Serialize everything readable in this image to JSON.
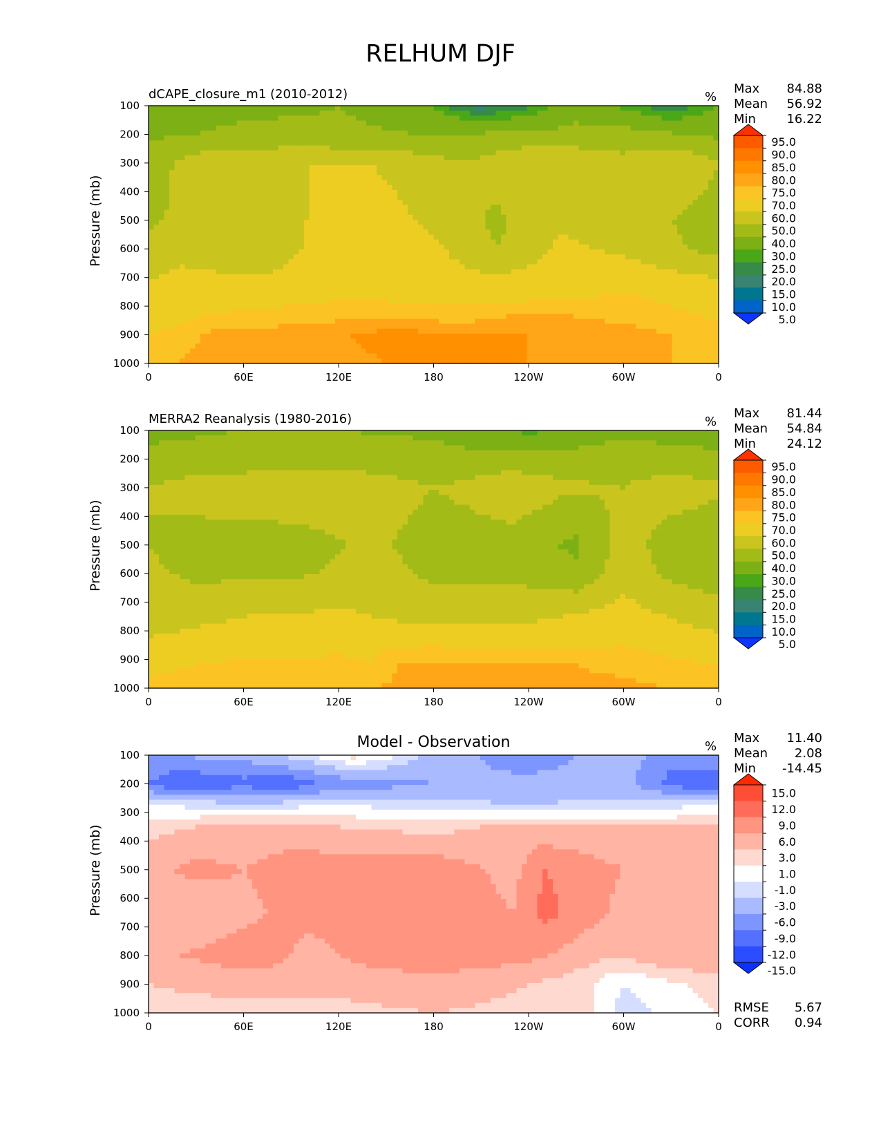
{
  "figure": {
    "title": "RELHUM DJF",
    "units": "%"
  },
  "chart_data": [
    {
      "type": "heatmap",
      "title": "dCAPE_closure_m1 (2010-2012)",
      "units": "%",
      "xlabel": "",
      "ylabel": "Pressure (mb)",
      "xticks": [
        "0",
        "60E",
        "120E",
        "180",
        "120W",
        "60W",
        "0"
      ],
      "yticks": [
        100,
        200,
        300,
        400,
        500,
        600,
        700,
        800,
        900,
        1000
      ],
      "ylim": [
        100,
        1000
      ],
      "stats": {
        "Max": "84.88",
        "Mean": "56.92",
        "Min": "16.22"
      },
      "colorbar_levels": [
        "95.0",
        "90.0",
        "85.0",
        "80.0",
        "75.0",
        "70.0",
        "60.0",
        "50.0",
        "40.0",
        "30.0",
        "25.0",
        "20.0",
        "15.0",
        "10.0",
        "5.0"
      ],
      "colorbar_colors": [
        "#fe3200",
        "#fe5a00",
        "#fe7800",
        "#ff9000",
        "#ffa517",
        "#fbc323",
        "#eecd23",
        "#cac41f",
        "#a3bb17",
        "#7cb014",
        "#4aa717",
        "#378b48",
        "#398372",
        "#00778f",
        "#0063c8",
        "#0c36ff"
      ],
      "fields": [
        {
          "p": 100,
          "lon": [
            0,
            10,
            60,
            120,
            150,
            180,
            190,
            210,
            240,
            270,
            300,
            330,
            360
          ],
          "rh": [
            30,
            34,
            38,
            40,
            38,
            30,
            24,
            17,
            24,
            36,
            28,
            20,
            30
          ]
        },
        {
          "p": 200,
          "lon": [
            0,
            60,
            120,
            180,
            240,
            300,
            360
          ],
          "rh": [
            38,
            42,
            41,
            40,
            42,
            44,
            38
          ]
        },
        {
          "p": 300,
          "lon": [
            0,
            30,
            90,
            140,
            200,
            240,
            270,
            300,
            330,
            360
          ],
          "rh": [
            45,
            55,
            60,
            60,
            50,
            60,
            58,
            53,
            60,
            50
          ]
        },
        {
          "p": 500,
          "lon": [
            0,
            20,
            45,
            75,
            125,
            180,
            220,
            260,
            300,
            340,
            360
          ],
          "rh": [
            48,
            52,
            55,
            52,
            68,
            58,
            48,
            58,
            56,
            48,
            46
          ]
        },
        {
          "p": 600,
          "lon": [
            0,
            20,
            45,
            75,
            125,
            180,
            220,
            260,
            300,
            340,
            360
          ],
          "rh": [
            55,
            58,
            55,
            52,
            70,
            62,
            50,
            62,
            58,
            50,
            47
          ]
        },
        {
          "p": 750,
          "lon": [
            0,
            60,
            120,
            180,
            240,
            300,
            360
          ],
          "rh": [
            62,
            65,
            68,
            66,
            66,
            70,
            66
          ]
        },
        {
          "p": 850,
          "lon": [
            0,
            40,
            100,
            150,
            200,
            240,
            300,
            360
          ],
          "rh": [
            66,
            72,
            74,
            76,
            74,
            78,
            74,
            70
          ]
        },
        {
          "p": 900,
          "lon": [
            0,
            40,
            100,
            150,
            200,
            240,
            300,
            360
          ],
          "rh": [
            70,
            76,
            78,
            82,
            81,
            80,
            78,
            72
          ]
        },
        {
          "p": 1000,
          "lon": [
            0,
            60,
            120,
            180,
            240,
            300,
            360
          ],
          "rh": [
            74,
            78,
            78,
            82,
            80,
            76,
            74
          ]
        }
      ]
    },
    {
      "type": "heatmap",
      "title": "MERRA2 Reanalysis (1980-2016)",
      "units": "%",
      "xlabel": "",
      "ylabel": "Pressure (mb)",
      "xticks": [
        "0",
        "60E",
        "120E",
        "180",
        "120W",
        "60W",
        "0"
      ],
      "yticks": [
        100,
        200,
        300,
        400,
        500,
        600,
        700,
        800,
        900,
        1000
      ],
      "ylim": [
        100,
        1000
      ],
      "stats": {
        "Max": "81.44",
        "Mean": "54.84",
        "Min": "24.12"
      },
      "colorbar_levels": [
        "95.0",
        "90.0",
        "85.0",
        "80.0",
        "75.0",
        "70.0",
        "60.0",
        "50.0",
        "40.0",
        "30.0",
        "25.0",
        "20.0",
        "15.0",
        "10.0",
        "5.0"
      ],
      "colorbar_colors": [
        "#fe3200",
        "#fe5a00",
        "#fe7800",
        "#ff9000",
        "#ffa517",
        "#fbc323",
        "#eecd23",
        "#cac41f",
        "#a3bb17",
        "#7cb014",
        "#4aa717",
        "#378b48",
        "#398372",
        "#00778f",
        "#0063c8",
        "#0c36ff"
      ],
      "fields": [
        {
          "p": 100,
          "lon": [
            0,
            60,
            120,
            180,
            210,
            240,
            270,
            300,
            330,
            360
          ],
          "rh": [
            38,
            40,
            40,
            38,
            32,
            28,
            32,
            38,
            36,
            36
          ]
        },
        {
          "p": 200,
          "lon": [
            0,
            60,
            120,
            180,
            240,
            300,
            360
          ],
          "rh": [
            42,
            44,
            46,
            44,
            44,
            46,
            42
          ]
        },
        {
          "p": 300,
          "lon": [
            0,
            30,
            90,
            140,
            180,
            200,
            230,
            260,
            300,
            330,
            360
          ],
          "rh": [
            50,
            55,
            58,
            55,
            50,
            52,
            58,
            52,
            50,
            55,
            52
          ]
        },
        {
          "p": 500,
          "lon": [
            0,
            30,
            90,
            140,
            180,
            230,
            270,
            300,
            330,
            360
          ],
          "rh": [
            50,
            45,
            45,
            52,
            46,
            45,
            38,
            55,
            45,
            42
          ]
        },
        {
          "p": 600,
          "lon": [
            0,
            30,
            90,
            140,
            180,
            230,
            270,
            300,
            330,
            360
          ],
          "rh": [
            52,
            48,
            48,
            54,
            48,
            48,
            42,
            56,
            48,
            44
          ]
        },
        {
          "p": 750,
          "lon": [
            0,
            60,
            120,
            180,
            240,
            300,
            360
          ],
          "rh": [
            55,
            60,
            62,
            56,
            58,
            64,
            55
          ]
        },
        {
          "p": 850,
          "lon": [
            0,
            60,
            120,
            180,
            240,
            300,
            360
          ],
          "rh": [
            62,
            66,
            68,
            70,
            68,
            70,
            64
          ]
        },
        {
          "p": 920,
          "lon": [
            0,
            60,
            120,
            140,
            160,
            240,
            300,
            360
          ],
          "rh": [
            68,
            72,
            72,
            70,
            76,
            76,
            74,
            70
          ]
        },
        {
          "p": 1000,
          "lon": [
            0,
            60,
            120,
            180,
            240,
            300,
            360
          ],
          "rh": [
            72,
            74,
            74,
            77,
            76,
            76,
            74
          ]
        }
      ]
    },
    {
      "type": "heatmap",
      "title": "Model - Observation",
      "units": "%",
      "xlabel": "",
      "ylabel": "Pressure (mb)",
      "xticks": [
        "0",
        "60E",
        "120E",
        "180",
        "120W",
        "60W",
        "0"
      ],
      "yticks": [
        100,
        200,
        300,
        400,
        500,
        600,
        700,
        800,
        900,
        1000
      ],
      "ylim": [
        100,
        1000
      ],
      "stats": {
        "Max": "11.40",
        "Mean": "2.08",
        "Min": "-14.45"
      },
      "footer_stats": {
        "RMSE": "5.67",
        "CORR": "0.94"
      },
      "colorbar_levels": [
        "15.0",
        "12.0",
        "9.0",
        "6.0",
        "3.0",
        "1.0",
        "-1.0",
        "-3.0",
        "-6.0",
        "-9.0",
        "-12.0",
        "-15.0"
      ],
      "colorbar_colors": [
        "#fe2a00",
        "#fe4e36",
        "#ff6c5a",
        "#ff9480",
        "#ffb4a4",
        "#fed9d0",
        "#ffffff",
        "#d6deff",
        "#aabaff",
        "#7d96ff",
        "#5370ff",
        "#2a4dff",
        "#0a32ff"
      ],
      "fields": [
        {
          "p": 100,
          "lon": [
            0,
            60,
            110,
            130,
            150,
            180,
            240,
            300,
            330,
            360
          ],
          "rh": [
            -6,
            -5,
            0,
            2,
            0,
            -4,
            -8,
            -4,
            -8,
            -6
          ]
        },
        {
          "p": 200,
          "lon": [
            0,
            20,
            60,
            80,
            120,
            180,
            240,
            300,
            330,
            360
          ],
          "rh": [
            -9,
            -12,
            -10,
            -12,
            -8,
            -6,
            -5,
            -5,
            -10,
            -12
          ]
        },
        {
          "p": 275,
          "lon": [
            0,
            60,
            120,
            180,
            240,
            300,
            360
          ],
          "rh": [
            -1,
            -2,
            -1,
            -2,
            -3,
            -2,
            -1
          ]
        },
        {
          "p": 350,
          "lon": [
            0,
            60,
            120,
            180,
            240,
            300,
            360
          ],
          "rh": [
            2,
            4,
            3,
            2,
            4,
            3,
            3
          ]
        },
        {
          "p": 500,
          "lon": [
            0,
            30,
            60,
            90,
            140,
            180,
            230,
            250,
            300,
            360
          ],
          "rh": [
            5,
            7,
            6,
            8,
            8,
            8,
            5,
            9,
            6,
            5
          ]
        },
        {
          "p": 650,
          "lon": [
            0,
            30,
            60,
            90,
            140,
            180,
            230,
            250,
            300,
            360
          ],
          "rh": [
            5,
            3,
            5,
            7,
            7,
            8,
            6,
            10,
            5,
            5
          ]
        },
        {
          "p": 800,
          "lon": [
            0,
            40,
            70,
            100,
            140,
            180,
            240,
            290,
            330,
            360
          ],
          "rh": [
            5,
            7,
            8,
            5,
            7,
            8,
            7,
            3,
            5,
            5
          ]
        },
        {
          "p": 900,
          "lon": [
            0,
            60,
            120,
            180,
            240,
            280,
            300,
            360
          ],
          "rh": [
            3,
            4,
            4,
            5,
            3,
            1,
            -1,
            2
          ]
        },
        {
          "p": 1000,
          "lon": [
            0,
            60,
            120,
            180,
            240,
            280,
            300,
            360
          ],
          "rh": [
            2,
            2,
            2,
            3,
            2,
            1,
            -2,
            1
          ]
        }
      ]
    }
  ]
}
